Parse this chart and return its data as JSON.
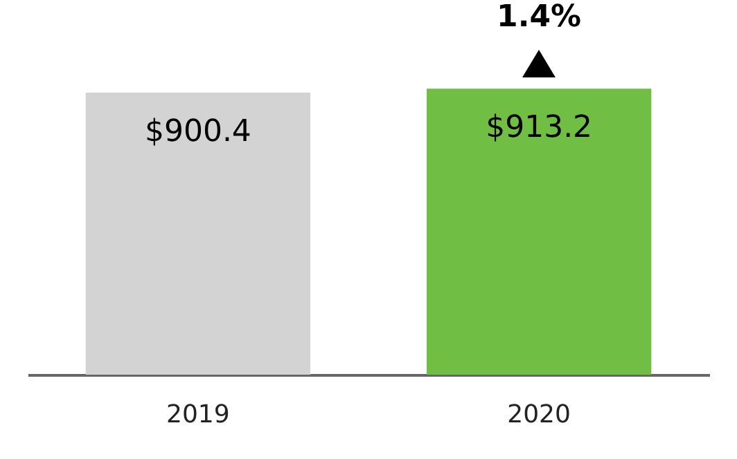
{
  "chart_data": {
    "type": "bar",
    "categories": [
      "2019",
      "2020"
    ],
    "values": [
      900.4,
      913.2
    ],
    "colors": [
      "#d3d3d3",
      "#70bf44"
    ],
    "value_labels": [
      "$900.4",
      "$913.2"
    ],
    "annotations": [
      {
        "text": "1.4%",
        "x": "2020",
        "y": 913.2
      }
    ]
  }
}
